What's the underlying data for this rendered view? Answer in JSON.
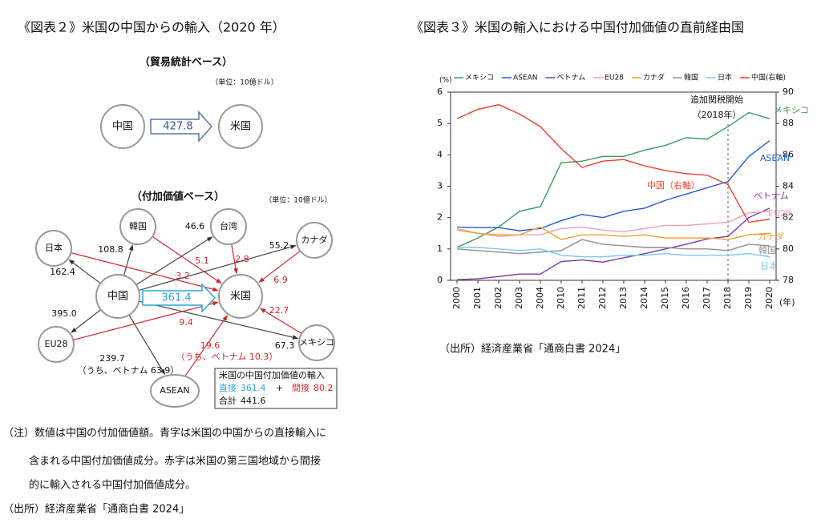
{
  "figure2": {
    "title": "《図表２》米国の中国からの輸入（2020 年）",
    "trade_basis": {
      "heading": "（貿易統計ベース）",
      "unit": "（単位：10億ドル）",
      "from": "中国",
      "to": "米国",
      "value": "427.8"
    },
    "value_added": {
      "heading": "（付加価値ベース）",
      "unit": "（単位：10億ドル）",
      "center": "中国",
      "target": "米国",
      "direct": "361.4",
      "nodes": [
        {
          "label": "日本",
          "export": "162.4",
          "indirect": "3.2"
        },
        {
          "label": "韓国",
          "export": "108.8",
          "indirect": "5.1"
        },
        {
          "label": "台湾",
          "export": "46.6",
          "indirect": "2.8"
        },
        {
          "label": "カナダ",
          "export": "55.2",
          "indirect": "6.9"
        },
        {
          "label": "EU28",
          "export": "395.0",
          "indirect": "9.4"
        },
        {
          "label": "メキシコ",
          "export": "67.3",
          "indirect": "22.7"
        },
        {
          "label": "ASEAN",
          "export": "239.7",
          "export_note": "（うち、ベトナム 63.9）",
          "indirect": "19.6",
          "indirect_note": "（うち、ベトナム 10.3）"
        }
      ],
      "box": {
        "title": "米国の中国付加価値の輸入",
        "direct_label": "直接",
        "plus": "+",
        "indirect_label": "間接",
        "indirect": "80.2",
        "total_label": "合計",
        "total": "441.6"
      }
    },
    "notes": [
      "（注）数値は中国の付加価値額。青字は米国の中国からの直接輸入に",
      "含まれる中国付加価値成分。赤字は米国の第三国地域から間接",
      "的に輸入される中国付加価値成分。"
    ],
    "source": "（出所）経済産業省「通商白書 2024」"
  },
  "chart_data": {
    "type": "line",
    "title": "《図表３》米国の輸入における中国付加価値の直前経由国",
    "source": "（出所）経済産業省「通商白書 2024」",
    "y_unit": "(%)",
    "x_unit": "(年)",
    "categories": [
      "2000",
      "2001",
      "2002",
      "2003",
      "2004",
      "2010",
      "2011",
      "2012",
      "2013",
      "2014",
      "2015",
      "2016",
      "2017",
      "2018",
      "2019",
      "2020"
    ],
    "ylim": [
      0,
      6
    ],
    "yticks": [
      0,
      1,
      2,
      3,
      4,
      5,
      6
    ],
    "y2lim": [
      78,
      90
    ],
    "y2ticks": [
      78,
      80,
      82,
      84,
      86,
      88,
      90
    ],
    "series": [
      {
        "name": "メキシコ",
        "color": "#3a9a5a",
        "values": [
          1.05,
          1.35,
          1.7,
          2.2,
          2.35,
          3.75,
          3.8,
          3.95,
          3.95,
          4.15,
          4.3,
          4.55,
          4.5,
          4.9,
          5.35,
          5.15
        ]
      },
      {
        "name": "ASEAN",
        "color": "#1f5fd0",
        "values": [
          1.7,
          1.68,
          1.68,
          1.58,
          1.65,
          1.9,
          2.1,
          2.0,
          2.2,
          2.3,
          2.55,
          2.75,
          2.95,
          3.15,
          3.95,
          4.45
        ]
      },
      {
        "name": "ベトナム",
        "color": "#7a3aa8",
        "values": [
          0.02,
          0.05,
          0.12,
          0.2,
          0.2,
          0.6,
          0.65,
          0.58,
          0.72,
          0.85,
          1.0,
          1.15,
          1.32,
          1.4,
          2.0,
          2.3
        ]
      },
      {
        "name": "EU28",
        "color": "#f0a0b0",
        "values": [
          1.65,
          1.5,
          1.4,
          1.45,
          1.45,
          1.65,
          1.7,
          1.6,
          1.55,
          1.65,
          1.75,
          1.75,
          1.8,
          1.85,
          2.15,
          2.2
        ]
      },
      {
        "name": "カナダ",
        "color": "#f0a030",
        "values": [
          1.6,
          1.5,
          1.45,
          1.45,
          1.7,
          1.3,
          1.45,
          1.45,
          1.4,
          1.45,
          1.35,
          1.35,
          1.35,
          1.3,
          1.45,
          1.5
        ]
      },
      {
        "name": "韓国",
        "color": "#909090",
        "values": [
          1.0,
          0.95,
          0.9,
          0.85,
          0.9,
          0.95,
          1.3,
          1.15,
          1.1,
          1.05,
          1.05,
          1.0,
          1.0,
          0.95,
          1.15,
          1.1
        ]
      },
      {
        "name": "日本",
        "color": "#7cc8ec",
        "values": [
          1.05,
          1.05,
          1.0,
          0.95,
          1.0,
          0.8,
          0.75,
          0.75,
          0.8,
          0.8,
          0.85,
          0.8,
          0.8,
          0.8,
          0.85,
          0.75
        ]
      },
      {
        "name": "中国(右軸)",
        "color": "#e8402a",
        "axis": "y2",
        "inline_label": "中国（右軸）",
        "values": [
          88.3,
          88.9,
          89.2,
          88.6,
          87.8,
          86.4,
          85.2,
          85.6,
          85.7,
          85.3,
          85.0,
          84.8,
          84.7,
          84.1,
          81.7,
          81.9
        ]
      }
    ],
    "annotation": {
      "lines": [
        "追加関税開始",
        "（2018年）"
      ],
      "category": "2018"
    }
  }
}
